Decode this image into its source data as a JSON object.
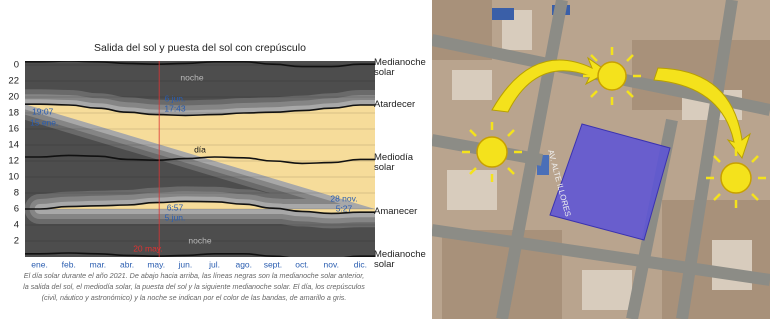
{
  "chart_data": {
    "type": "line",
    "title": "Salida del sol y puesta del sol con crepúsculo",
    "categories": [
      "ene.",
      "feb.",
      "mar.",
      "abr.",
      "may.",
      "jun.",
      "jul.",
      "ago.",
      "sept.",
      "oct.",
      "nov.",
      "dic."
    ],
    "series": [
      {
        "name": "Medianoche solar",
        "color": "#111111",
        "values": [
          24.4,
          24.5,
          24.4,
          24.2,
          24.1,
          24.2,
          24.4,
          24.4,
          24.1,
          23.8,
          23.8,
          24.1
        ]
      },
      {
        "name": "Atardecer",
        "color": "#111111",
        "values": [
          19.1,
          19.0,
          18.6,
          18.1,
          17.8,
          17.7,
          17.8,
          18.0,
          18.1,
          18.3,
          18.6,
          19.0
        ]
      },
      {
        "name": "Mediodía solar",
        "color": "#111111",
        "values": [
          12.5,
          12.7,
          12.6,
          12.2,
          12.1,
          12.3,
          12.5,
          12.4,
          12.0,
          11.7,
          11.8,
          12.2
        ]
      },
      {
        "name": "Amanecer",
        "color": "#111111",
        "values": [
          6.0,
          6.3,
          6.4,
          6.5,
          6.8,
          6.95,
          6.9,
          6.6,
          6.1,
          5.7,
          5.45,
          5.6
        ]
      },
      {
        "name": "Medianoche solar",
        "color": "#111111",
        "values": [
          0.4,
          0.5,
          0.4,
          0.2,
          0.1,
          0.2,
          0.4,
          0.4,
          0.1,
          -0.2,
          -0.2,
          0.1
        ]
      }
    ],
    "ylim": [
      0,
      24.5
    ],
    "yticks": [
      {
        "value": 24,
        "label": "0"
      },
      22,
      20,
      18,
      16,
      14,
      12,
      10,
      8,
      6,
      4,
      2
    ],
    "annotations": [
      "noche",
      "día",
      "noche",
      "19:07",
      "15 ene.",
      "6 jun.",
      "17:43",
      "6:57",
      "5 jun.",
      "28 nov.",
      "5:27",
      "20 may."
    ],
    "caption": [
      "El día solar durante el año 2021. De abajo hacia arriba, las líneas negras son la medianoche solar anterior,",
      "la salida del sol, el mediodía solar, la puesta del sol y la siguiente medianoche solar. El día, los crepúsculos",
      "(civil, náutico y astronómico) y la noche se indican por el color de las bandas, de amarillo a gris."
    ]
  },
  "photo": {
    "street_label": "AV. ALTE ILLORES"
  }
}
